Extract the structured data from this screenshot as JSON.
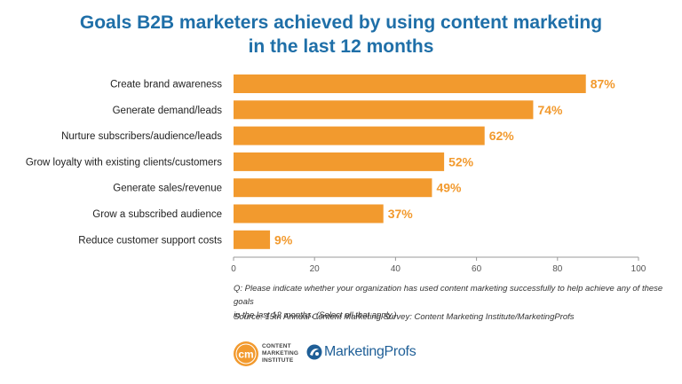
{
  "chart_data": {
    "type": "bar",
    "orientation": "horizontal",
    "title": [
      "Goals B2B marketers achieved by using content marketing",
      "in the last 12 months"
    ],
    "categories": [
      "Create brand awareness",
      "Generate demand/leads",
      "Nurture subscribers/audience/leads",
      "Grow loyalty with existing clients/customers",
      "Generate sales/revenue",
      "Grow a subscribed audience",
      "Reduce customer support costs"
    ],
    "values": [
      87,
      74,
      62,
      52,
      49,
      37,
      9
    ],
    "value_labels": [
      "87%",
      "74%",
      "62%",
      "52%",
      "49%",
      "37%",
      "9%"
    ],
    "xlim": [
      0,
      100
    ],
    "xticks": [
      "0",
      "20",
      "40",
      "60",
      "80",
      "100"
    ],
    "xlabel": "",
    "ylabel": "",
    "grid": false,
    "legend": "none",
    "bar_color": "#f29a2e",
    "label_color": "#f29a2e"
  },
  "notes": {
    "question_line1": "Q: Please indicate whether your organization has used content marketing successfully to help achieve any of these goals",
    "question_line2": "in the last 12 months. (Select all that apply.)",
    "source": "Source: 15th Annual Content Marketing Survey: Content Marketing Institute/MarketingProfs"
  },
  "logos": {
    "cmi_mark": "cm",
    "cmi_line1": "CONTENT",
    "cmi_line2": "MARKETING",
    "cmi_line3": "INSTITUTE",
    "marketingprofs": "MarketingProfs",
    "cmi_icon": "cmi-circle-logo",
    "mp_icon": "marketingprofs-swirl-logo"
  }
}
